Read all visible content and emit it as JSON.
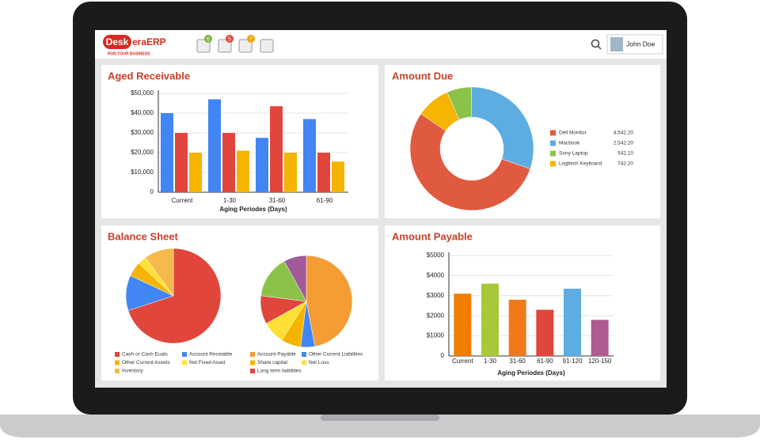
{
  "header": {
    "logo": {
      "part1": "Desk",
      "part2": "era",
      "part3": "ERP",
      "tagline": "RUN YOUR BUSINESS"
    },
    "badges": [
      6,
      5,
      7
    ],
    "user": "John Doe"
  },
  "chart_data": [
    {
      "type": "grouped-bar",
      "title": "Aged Receivable",
      "x_label": "Aging Periodes (Days)",
      "categories": [
        "Current",
        "1-30",
        "31-60",
        "61-90"
      ],
      "series": [
        {
          "color": "#4285f4",
          "values": [
            40000,
            47000,
            27500,
            37000
          ]
        },
        {
          "color": "#e0463c",
          "values": [
            30000,
            30000,
            43500,
            20000
          ]
        },
        {
          "color": "#f4b400",
          "values": [
            20000,
            21000,
            20000,
            15500
          ]
        }
      ],
      "ylim": [
        0,
        50000
      ],
      "yticks": [
        0,
        {
          "value": 10000,
          "label": "$10,000"
        },
        {
          "value": 20000,
          "label": "$20,000"
        },
        {
          "value": 30000,
          "label": "$30,000"
        },
        {
          "value": 40000,
          "label": "$40,000"
        },
        {
          "value": 50000,
          "label": "$50,000"
        }
      ],
      "grid": true
    },
    {
      "type": "donut",
      "title": "Amount Due",
      "categories": [
        "Dell Monitor",
        "Macbook",
        "Sony Laptop",
        "Logitech Keyboard"
      ],
      "values": [
        4542.2,
        2542.2,
        542.1,
        742.2
      ],
      "value_labels": [
        "4,542.20",
        "2,542.20",
        "542.10",
        "742.20"
      ],
      "colors": [
        "#e05a40",
        "#5dade2",
        "#8bc34a",
        "#f4b400"
      ]
    },
    {
      "type": "pies",
      "title": "Balance Sheet",
      "pies": [
        {
          "categories": [
            "Cash or Cash Euals",
            "Account Receiable",
            "Other Current Assets",
            "Net Fixed Asset",
            "Inventory"
          ],
          "values": [
            70,
            12,
            5,
            3,
            10
          ],
          "colors": [
            "#e0463c",
            "#4285f4",
            "#f4b400",
            "#ffe135",
            "#f6b94b"
          ]
        },
        {
          "categories": [
            "Account Payable",
            "Other Current Liabilities",
            "Share capital",
            "Net Loss",
            "Long term liabilities",
            null,
            null
          ],
          "values": [
            47,
            5,
            7,
            8,
            10,
            15,
            8
          ],
          "colors": [
            "#f59c34",
            "#4285f4",
            "#f4b400",
            "#ffe135",
            "#e0463c",
            "#8bc34a",
            "#a05a9a"
          ]
        }
      ]
    },
    {
      "type": "bar",
      "title": "Amount Payable",
      "x_label": "Aging Periodes (Days)",
      "categories": [
        "Current",
        "1-30",
        "31-60",
        "61-90",
        "91-120",
        "120-150"
      ],
      "values": [
        3100,
        3600,
        2800,
        2300,
        3350,
        1800
      ],
      "colors": [
        "#ef7d00",
        "#a8c83a",
        "#f07a1a",
        "#e0463c",
        "#5dade2",
        "#b05a8f"
      ],
      "ylim": [
        0,
        5000
      ],
      "yticks": [
        0,
        {
          "value": 1000,
          "label": "$1000"
        },
        {
          "value": 2000,
          "label": "$2000"
        },
        {
          "value": 3000,
          "label": "$3000"
        },
        {
          "value": 4000,
          "label": "$4000"
        },
        {
          "value": 5000,
          "label": "$5000"
        }
      ],
      "grid": true
    }
  ]
}
